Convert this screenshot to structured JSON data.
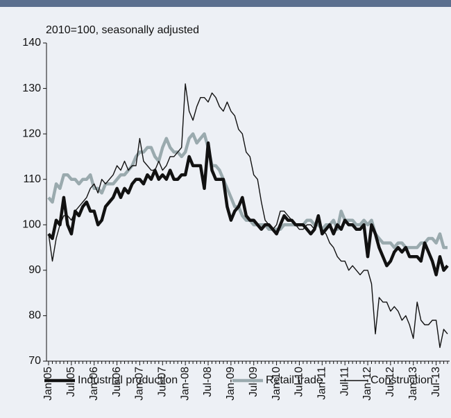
{
  "chart_data": {
    "type": "line",
    "subtitle": "2010=100, seasonally adjusted",
    "categories": [
      "Jan-05",
      null,
      null,
      null,
      null,
      null,
      "Jul-05",
      null,
      null,
      null,
      null,
      null,
      "Jan-06",
      null,
      null,
      null,
      null,
      null,
      "Jul-06",
      null,
      null,
      null,
      null,
      null,
      "Jan-07",
      null,
      null,
      null,
      null,
      null,
      "Jul-07",
      null,
      null,
      null,
      null,
      null,
      "Jan-08",
      null,
      null,
      null,
      null,
      null,
      "Jul-08",
      null,
      null,
      null,
      null,
      null,
      "Jan-09",
      null,
      null,
      null,
      null,
      null,
      "Jul-09",
      null,
      null,
      null,
      null,
      null,
      "Jan-10",
      null,
      null,
      null,
      null,
      null,
      "Jul-10",
      null,
      null,
      null,
      null,
      null,
      "Jan-11",
      null,
      null,
      null,
      null,
      null,
      "Jul-11",
      null,
      null,
      null,
      null,
      null,
      "Jan-12",
      null,
      null,
      null,
      null,
      null,
      "Jul-12",
      null,
      null,
      null,
      null,
      null,
      "Jan-13",
      null,
      null,
      null,
      null,
      null,
      "Jul-13",
      null,
      null,
      null
    ],
    "series": [
      {
        "name": "Industrial production",
        "color": "#111111",
        "values": [
          98,
          97,
          101,
          100,
          106,
          100,
          98,
          103,
          102,
          104,
          105,
          103,
          103,
          100,
          101,
          104,
          105,
          106,
          108,
          106,
          108,
          107,
          109,
          110,
          110,
          109,
          111,
          110,
          112,
          110,
          111,
          110,
          112,
          110,
          110,
          111,
          111,
          115,
          113,
          113,
          113,
          108,
          118,
          112,
          110,
          110,
          110,
          104,
          101,
          103,
          104,
          106,
          102,
          101,
          101,
          100,
          99,
          100,
          100,
          99,
          98,
          100,
          102,
          101,
          101,
          100,
          100,
          100,
          99,
          98,
          99,
          102,
          98,
          99,
          100,
          98,
          100,
          99,
          101,
          100,
          100,
          99,
          99,
          100,
          93,
          100,
          98,
          95,
          93,
          91,
          92,
          94,
          95,
          94,
          95,
          93,
          93,
          93,
          92,
          96,
          94,
          92,
          89,
          93,
          90,
          91
        ]
      },
      {
        "name": "Retail trade",
        "color": "#9aaaae",
        "values": [
          106,
          105,
          109,
          108,
          111,
          111,
          110,
          110,
          109,
          110,
          110,
          111,
          108,
          108,
          107,
          109,
          109,
          109,
          110,
          111,
          111,
          112,
          113,
          115,
          116,
          116,
          117,
          117,
          115,
          114,
          117,
          119,
          117,
          116,
          116,
          115,
          116,
          119,
          120,
          118,
          119,
          120,
          117,
          113,
          113,
          112,
          110,
          108,
          106,
          104,
          104,
          102,
          101,
          101,
          100,
          100,
          100,
          100,
          99,
          99,
          99,
          99,
          100,
          100,
          100,
          100,
          100,
          100,
          101,
          101,
          100,
          100,
          99,
          100,
          100,
          101,
          99,
          103,
          101,
          101,
          101,
          100,
          100,
          101,
          100,
          101,
          98,
          97,
          96,
          96,
          96,
          95,
          96,
          96,
          95,
          95,
          95,
          95,
          96,
          96,
          97,
          97,
          96,
          98,
          95,
          95
        ]
      },
      {
        "name": "Construction",
        "color": "#111111",
        "values": [
          98,
          92,
          97,
          100,
          102,
          102,
          101,
          103,
          104,
          105,
          106,
          108,
          109,
          107,
          110,
          109,
          110,
          111,
          113,
          112,
          114,
          112,
          113,
          113,
          119,
          114,
          113,
          112,
          112,
          114,
          112,
          113,
          115,
          115,
          116,
          117,
          131,
          125,
          123,
          126,
          128,
          128,
          127,
          129,
          128,
          126,
          125,
          127,
          125,
          124,
          121,
          120,
          116,
          115,
          111,
          110,
          105,
          101,
          100,
          99,
          100,
          103,
          103,
          102,
          101,
          100,
          99,
          99,
          100,
          100,
          99,
          102,
          99,
          98,
          96,
          95,
          93,
          92,
          92,
          90,
          91,
          90,
          89,
          90,
          90,
          87,
          76,
          84,
          83,
          83,
          81,
          82,
          81,
          79,
          80,
          78,
          75,
          83,
          79,
          78,
          78,
          79,
          79,
          73,
          77,
          76
        ]
      }
    ],
    "ylim": [
      70,
      140
    ],
    "yticks": [
      70,
      80,
      90,
      100,
      110,
      120,
      130,
      140
    ],
    "grid": false,
    "legend": "bottom"
  }
}
